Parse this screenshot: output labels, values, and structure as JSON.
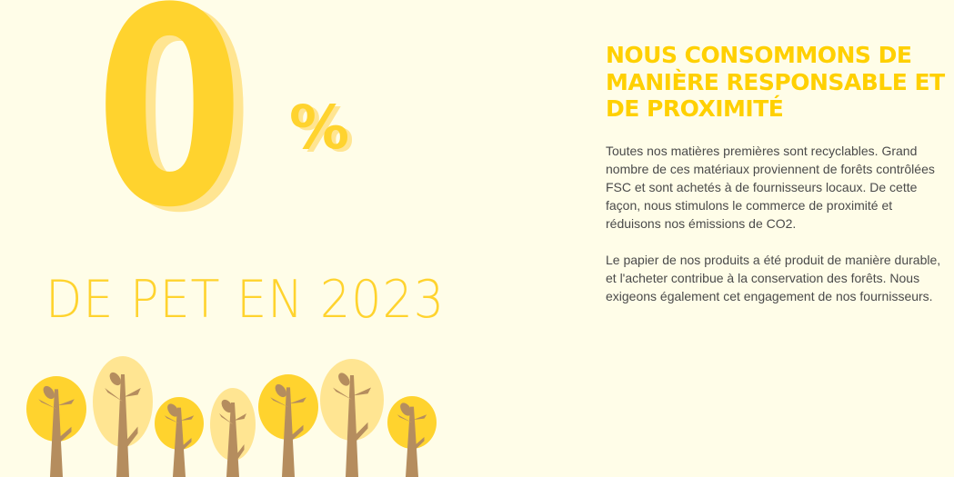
{
  "stat": {
    "value": "0",
    "unit": "%",
    "caption": "DE PET EN 2023"
  },
  "heading": "NOUS CONSOMMONS DE MANIÈRE RESPONSABLE ET DE PROXIMITÉ",
  "paragraphs": [
    "Toutes nos matières premières sont recyclables. Grand nombre de ces matériaux proviennent de forêts contrôlées FSC et sont achetés à de fournisseurs locaux. De cette façon, nous stimulons le commerce de proximité et réduisons nos émissions de CO2.",
    "Le papier de nos produits a été produit de manière durable, et l'acheter contribue à la conservation des forêts. Nous exigeons également cet engagement de nos fournisseurs."
  ],
  "colors": {
    "accent": "#ffd32e",
    "accent_light": "#ffe592",
    "trunk": "#b58d5e",
    "background": "#fffde8",
    "text": "#4a4a4a"
  },
  "illustration": "trees-illustration"
}
